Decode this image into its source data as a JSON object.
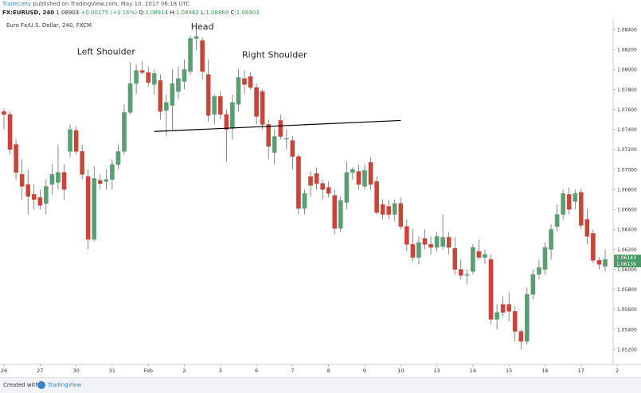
{
  "header": {
    "brand": "Tradeciety",
    "published": " published on TradingView.com, May 10, 2017 06:18 UTC",
    "symbol": "FX:EURUSD, 240",
    "last": "1.08903",
    "change": "+0.00175 (+0.16%)",
    "o_label": "O:",
    "o": "1.08914",
    "h_label": "H:",
    "h": "1.08962",
    "l_label": "L:",
    "l": "1.08869",
    "c_label": "C:",
    "c": "1.08903"
  },
  "footer": {
    "created": "Created with",
    "tradingview": "TradingView"
  },
  "colors": {
    "up": "#5c9e74",
    "down": "#c8453a",
    "axis": "#cfcfcf",
    "text": "#333333",
    "tag": "#4a9a68"
  },
  "chart_data": {
    "type": "candlestick",
    "title": "Euro Fx/U.S. Dollar, 240, FXCM",
    "ylim": [
      1.0505,
      1.0852
    ],
    "yticks": [
      1.084,
      1.082,
      1.08,
      1.078,
      1.076,
      1.074,
      1.072,
      1.07,
      1.068,
      1.066,
      1.064,
      1.062,
      1.06,
      1.058,
      1.056,
      1.054,
      1.052
    ],
    "ytick_labels": [
      "1.08400",
      "1.08200",
      "1.08000",
      "1.07800",
      "1.07600",
      "1.07400",
      "1.07200",
      "1.07000",
      "1.06800",
      "1.06600",
      "1.06400",
      "1.06200",
      "1.06000",
      "1.05800",
      "1.05600",
      "1.05400",
      "1.05200"
    ],
    "price_tags": [
      "1.06143",
      "1.06139"
    ],
    "xticks": [
      {
        "label": "26",
        "i": 0
      },
      {
        "label": "27",
        "i": 6
      },
      {
        "label": "30",
        "i": 12
      },
      {
        "label": "31",
        "i": 18
      },
      {
        "label": "Feb",
        "i": 24
      },
      {
        "label": "2",
        "i": 30
      },
      {
        "label": "3",
        "i": 36
      },
      {
        "label": "6",
        "i": 42
      },
      {
        "label": "7",
        "i": 48
      },
      {
        "label": "8",
        "i": 54
      },
      {
        "label": "9",
        "i": 60
      },
      {
        "label": "10",
        "i": 66
      },
      {
        "label": "13",
        "i": 72
      },
      {
        "label": "14",
        "i": 78
      },
      {
        "label": "15",
        "i": 84
      },
      {
        "label": "16",
        "i": 90
      },
      {
        "label": "17",
        "i": 96
      },
      {
        "label": "2",
        "i": 102
      }
    ],
    "annotations": [
      {
        "text": "Left Shoulder",
        "i": 17,
        "y": 1.0815
      },
      {
        "text": "Head",
        "i": 33,
        "y": 1.084
      },
      {
        "text": "Right Shoulder",
        "i": 45,
        "y": 1.0812
      }
    ],
    "neckline": {
      "start": {
        "i": 25,
        "y": 1.0738
      },
      "end": {
        "i": 66,
        "y": 1.0749
      }
    },
    "candles": [
      {
        "o": 1.0758,
        "h": 1.0761,
        "l": 1.074,
        "c": 1.0755
      },
      {
        "o": 1.0755,
        "h": 1.0758,
        "l": 1.0715,
        "c": 1.072
      },
      {
        "o": 1.0725,
        "h": 1.073,
        "l": 1.069,
        "c": 1.0697
      },
      {
        "o": 1.0695,
        "h": 1.071,
        "l": 1.067,
        "c": 1.0683
      },
      {
        "o": 1.0685,
        "h": 1.07,
        "l": 1.0655,
        "c": 1.0673
      },
      {
        "o": 1.0675,
        "h": 1.0685,
        "l": 1.066,
        "c": 1.067
      },
      {
        "o": 1.0672,
        "h": 1.068,
        "l": 1.066,
        "c": 1.0664
      },
      {
        "o": 1.0666,
        "h": 1.069,
        "l": 1.0655,
        "c": 1.0683
      },
      {
        "o": 1.0685,
        "h": 1.0705,
        "l": 1.0675,
        "c": 1.0695
      },
      {
        "o": 1.0687,
        "h": 1.0725,
        "l": 1.068,
        "c": 1.0697
      },
      {
        "o": 1.0697,
        "h": 1.0705,
        "l": 1.067,
        "c": 1.068
      },
      {
        "o": 1.0718,
        "h": 1.0745,
        "l": 1.0712,
        "c": 1.074
      },
      {
        "o": 1.0739,
        "h": 1.0743,
        "l": 1.0715,
        "c": 1.0718
      },
      {
        "o": 1.0718,
        "h": 1.0725,
        "l": 1.069,
        "c": 1.0695
      },
      {
        "o": 1.0693,
        "h": 1.07,
        "l": 1.062,
        "c": 1.063
      },
      {
        "o": 1.063,
        "h": 1.0703,
        "l": 1.0628,
        "c": 1.0691
      },
      {
        "o": 1.0689,
        "h": 1.0695,
        "l": 1.068,
        "c": 1.0686
      },
      {
        "o": 1.0688,
        "h": 1.07,
        "l": 1.068,
        "c": 1.069
      },
      {
        "o": 1.069,
        "h": 1.071,
        "l": 1.068,
        "c": 1.0705
      },
      {
        "o": 1.0705,
        "h": 1.0725,
        "l": 1.07,
        "c": 1.0718
      },
      {
        "o": 1.0718,
        "h": 1.0765,
        "l": 1.0715,
        "c": 1.0757
      },
      {
        "o": 1.0757,
        "h": 1.0807,
        "l": 1.0755,
        "c": 1.0786
      },
      {
        "o": 1.0786,
        "h": 1.0805,
        "l": 1.0775,
        "c": 1.0799
      },
      {
        "o": 1.0799,
        "h": 1.0808,
        "l": 1.0795,
        "c": 1.0797
      },
      {
        "o": 1.0797,
        "h": 1.0803,
        "l": 1.0783,
        "c": 1.0787
      },
      {
        "o": 1.0785,
        "h": 1.08,
        "l": 1.0775,
        "c": 1.0796
      },
      {
        "o": 1.0789,
        "h": 1.0795,
        "l": 1.075,
        "c": 1.0758
      },
      {
        "o": 1.0759,
        "h": 1.0775,
        "l": 1.0733,
        "c": 1.0767
      },
      {
        "o": 1.0764,
        "h": 1.08,
        "l": 1.074,
        "c": 1.0786
      },
      {
        "o": 1.0778,
        "h": 1.0803,
        "l": 1.077,
        "c": 1.0791
      },
      {
        "o": 1.0788,
        "h": 1.081,
        "l": 1.078,
        "c": 1.08
      },
      {
        "o": 1.0798,
        "h": 1.0834,
        "l": 1.0795,
        "c": 1.0831
      },
      {
        "o": 1.0831,
        "h": 1.0843,
        "l": 1.082,
        "c": 1.0833
      },
      {
        "o": 1.0829,
        "h": 1.0832,
        "l": 1.079,
        "c": 1.0798
      },
      {
        "o": 1.0795,
        "h": 1.081,
        "l": 1.0748,
        "c": 1.0754
      },
      {
        "o": 1.0755,
        "h": 1.0775,
        "l": 1.0745,
        "c": 1.0773
      },
      {
        "o": 1.0773,
        "h": 1.0778,
        "l": 1.075,
        "c": 1.0755
      },
      {
        "o": 1.0755,
        "h": 1.076,
        "l": 1.0708,
        "c": 1.074
      },
      {
        "o": 1.0741,
        "h": 1.0775,
        "l": 1.073,
        "c": 1.0767
      },
      {
        "o": 1.0765,
        "h": 1.08,
        "l": 1.0758,
        "c": 1.0792
      },
      {
        "o": 1.0791,
        "h": 1.0799,
        "l": 1.0775,
        "c": 1.0785
      },
      {
        "o": 1.0793,
        "h": 1.0797,
        "l": 1.078,
        "c": 1.0782
      },
      {
        "o": 1.0782,
        "h": 1.0786,
        "l": 1.0745,
        "c": 1.0753
      },
      {
        "o": 1.0778,
        "h": 1.078,
        "l": 1.074,
        "c": 1.0745
      },
      {
        "o": 1.0745,
        "h": 1.075,
        "l": 1.071,
        "c": 1.0723
      },
      {
        "o": 1.0717,
        "h": 1.074,
        "l": 1.0705,
        "c": 1.0733
      },
      {
        "o": 1.0749,
        "h": 1.0755,
        "l": 1.073,
        "c": 1.0733
      },
      {
        "o": 1.0731,
        "h": 1.074,
        "l": 1.072,
        "c": 1.0731
      },
      {
        "o": 1.0729,
        "h": 1.0733,
        "l": 1.07,
        "c": 1.0713
      },
      {
        "o": 1.0713,
        "h": 1.0715,
        "l": 1.0655,
        "c": 1.0661
      },
      {
        "o": 1.0661,
        "h": 1.068,
        "l": 1.0655,
        "c": 1.0676
      },
      {
        "o": 1.0693,
        "h": 1.0698,
        "l": 1.0673,
        "c": 1.0684
      },
      {
        "o": 1.0696,
        "h": 1.0702,
        "l": 1.068,
        "c": 1.0686
      },
      {
        "o": 1.0686,
        "h": 1.069,
        "l": 1.067,
        "c": 1.068
      },
      {
        "o": 1.0682,
        "h": 1.0688,
        "l": 1.0672,
        "c": 1.0676
      },
      {
        "o": 1.0674,
        "h": 1.068,
        "l": 1.0635,
        "c": 1.0641
      },
      {
        "o": 1.0641,
        "h": 1.0673,
        "l": 1.0637,
        "c": 1.0669
      },
      {
        "o": 1.0667,
        "h": 1.0708,
        "l": 1.066,
        "c": 1.0697
      },
      {
        "o": 1.0697,
        "h": 1.0702,
        "l": 1.069,
        "c": 1.07
      },
      {
        "o": 1.0698,
        "h": 1.0705,
        "l": 1.068,
        "c": 1.0685
      },
      {
        "o": 1.0683,
        "h": 1.0705,
        "l": 1.068,
        "c": 1.0699
      },
      {
        "o": 1.0707,
        "h": 1.0712,
        "l": 1.068,
        "c": 1.0685
      },
      {
        "o": 1.0688,
        "h": 1.0693,
        "l": 1.0655,
        "c": 1.0657
      },
      {
        "o": 1.0665,
        "h": 1.067,
        "l": 1.065,
        "c": 1.0655
      },
      {
        "o": 1.0663,
        "h": 1.067,
        "l": 1.065,
        "c": 1.0655
      },
      {
        "o": 1.0655,
        "h": 1.067,
        "l": 1.0648,
        "c": 1.0666
      },
      {
        "o": 1.0666,
        "h": 1.0672,
        "l": 1.064,
        "c": 1.0643
      },
      {
        "o": 1.0643,
        "h": 1.065,
        "l": 1.0618,
        "c": 1.0625
      },
      {
        "o": 1.0625,
        "h": 1.064,
        "l": 1.0608,
        "c": 1.0612
      },
      {
        "o": 1.0612,
        "h": 1.0633,
        "l": 1.0605,
        "c": 1.0627
      },
      {
        "o": 1.0631,
        "h": 1.064,
        "l": 1.062,
        "c": 1.0625
      },
      {
        "o": 1.0625,
        "h": 1.0633,
        "l": 1.0615,
        "c": 1.0622
      },
      {
        "o": 1.0622,
        "h": 1.0637,
        "l": 1.0618,
        "c": 1.0633
      },
      {
        "o": 1.0623,
        "h": 1.0655,
        "l": 1.062,
        "c": 1.0632
      },
      {
        "o": 1.0632,
        "h": 1.0637,
        "l": 1.0615,
        "c": 1.0622
      },
      {
        "o": 1.0621,
        "h": 1.0632,
        "l": 1.0595,
        "c": 1.06
      },
      {
        "o": 1.06,
        "h": 1.061,
        "l": 1.059,
        "c": 1.0594
      },
      {
        "o": 1.0594,
        "h": 1.06,
        "l": 1.0585,
        "c": 1.0595
      },
      {
        "o": 1.0598,
        "h": 1.0625,
        "l": 1.0595,
        "c": 1.0622
      },
      {
        "o": 1.0618,
        "h": 1.063,
        "l": 1.061,
        "c": 1.0612
      },
      {
        "o": 1.0612,
        "h": 1.062,
        "l": 1.0605,
        "c": 1.0615
      },
      {
        "o": 1.061,
        "h": 1.0615,
        "l": 1.0545,
        "c": 1.055
      },
      {
        "o": 1.055,
        "h": 1.0565,
        "l": 1.054,
        "c": 1.0557
      },
      {
        "o": 1.0565,
        "h": 1.0573,
        "l": 1.0553,
        "c": 1.0557
      },
      {
        "o": 1.0565,
        "h": 1.0577,
        "l": 1.0548,
        "c": 1.0558
      },
      {
        "o": 1.0558,
        "h": 1.0563,
        "l": 1.0528,
        "c": 1.0538
      },
      {
        "o": 1.0538,
        "h": 1.054,
        "l": 1.052,
        "c": 1.0528
      },
      {
        "o": 1.0528,
        "h": 1.0582,
        "l": 1.0525,
        "c": 1.0575
      },
      {
        "o": 1.0575,
        "h": 1.06,
        "l": 1.057,
        "c": 1.0595
      },
      {
        "o": 1.0595,
        "h": 1.061,
        "l": 1.059,
        "c": 1.0602
      },
      {
        "o": 1.06,
        "h": 1.0627,
        "l": 1.0595,
        "c": 1.0622
      },
      {
        "o": 1.062,
        "h": 1.0645,
        "l": 1.061,
        "c": 1.064
      },
      {
        "o": 1.0643,
        "h": 1.0665,
        "l": 1.0638,
        "c": 1.0655
      },
      {
        "o": 1.0655,
        "h": 1.068,
        "l": 1.065,
        "c": 1.0676
      },
      {
        "o": 1.0675,
        "h": 1.0682,
        "l": 1.0655,
        "c": 1.066
      },
      {
        "o": 1.0668,
        "h": 1.068,
        "l": 1.066,
        "c": 1.0676
      },
      {
        "o": 1.0677,
        "h": 1.0681,
        "l": 1.064,
        "c": 1.0644
      },
      {
        "o": 1.065,
        "h": 1.066,
        "l": 1.0625,
        "c": 1.0633
      },
      {
        "o": 1.0636,
        "h": 1.064,
        "l": 1.0606,
        "c": 1.0609
      },
      {
        "o": 1.0609,
        "h": 1.0612,
        "l": 1.06,
        "c": 1.0605
      },
      {
        "o": 1.0603,
        "h": 1.062,
        "l": 1.0598,
        "c": 1.061
      }
    ]
  }
}
